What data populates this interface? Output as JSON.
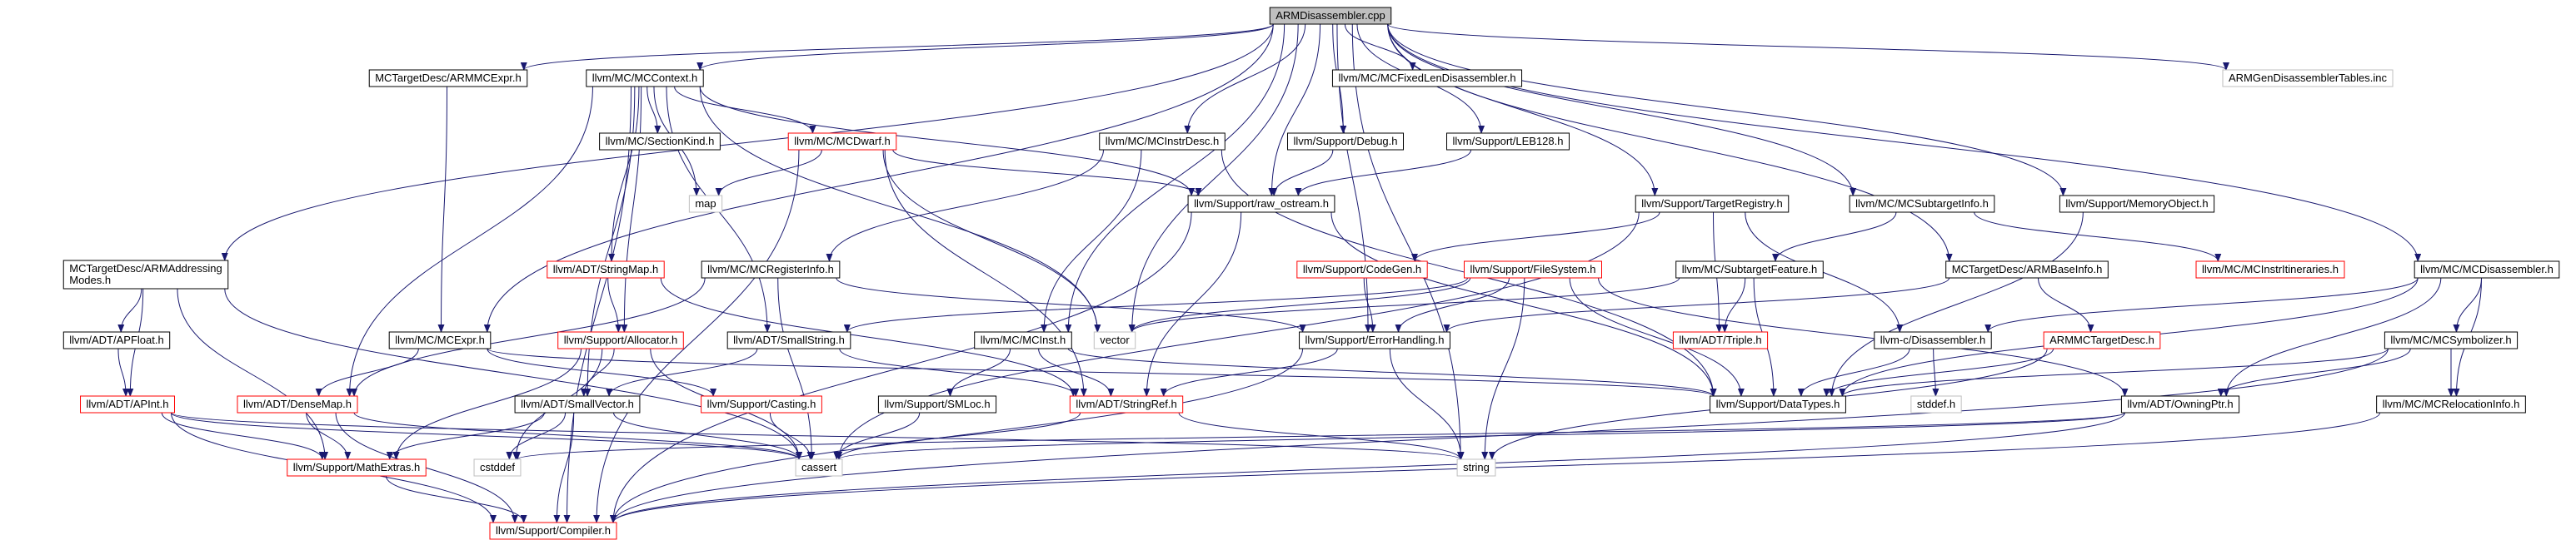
{
  "colors": {
    "edge": "#191970",
    "border_default": "#000000",
    "border_red": "#ff0000",
    "border_gray": "#bfbfbf",
    "root_fill": "#bfbfbf"
  },
  "nodes": [
    {
      "id": "armdis",
      "label": "ARMDisassembler.cpp",
      "border": "black",
      "fill": "gray"
    },
    {
      "id": "armmcexpr_h",
      "label": "MCTargetDesc/ARMMCExpr.h",
      "border": "black"
    },
    {
      "id": "mccontext",
      "label": "llvm/MC/MCContext.h",
      "border": "black"
    },
    {
      "id": "fixedlen",
      "label": "llvm/MC/MCFixedLenDisassembler.h",
      "border": "black"
    },
    {
      "id": "gentables",
      "label": "ARMGenDisassemblerTables.inc",
      "border": "gray"
    },
    {
      "id": "sectionkind",
      "label": "llvm/MC/SectionKind.h",
      "border": "black"
    },
    {
      "id": "mcdwarf",
      "label": "llvm/MC/MCDwarf.h",
      "border": "red"
    },
    {
      "id": "mcinstrdesc",
      "label": "llvm/MC/MCInstrDesc.h",
      "border": "black"
    },
    {
      "id": "debug",
      "label": "llvm/Support/Debug.h",
      "border": "black"
    },
    {
      "id": "leb128",
      "label": "llvm/Support/LEB128.h",
      "border": "black"
    },
    {
      "id": "map",
      "label": "map",
      "border": "gray"
    },
    {
      "id": "raw_ostream",
      "label": "llvm/Support/raw_ostream.h",
      "border": "black"
    },
    {
      "id": "targetregistry",
      "label": "llvm/Support/TargetRegistry.h",
      "border": "black"
    },
    {
      "id": "subtargetinfo",
      "label": "llvm/MC/MCSubtargetInfo.h",
      "border": "black"
    },
    {
      "id": "memobj",
      "label": "llvm/Support/MemoryObject.h",
      "border": "black"
    },
    {
      "id": "armaddr",
      "label": "MCTargetDesc/ARMAddressing\nModes.h",
      "border": "black"
    },
    {
      "id": "stringmap",
      "label": "llvm/ADT/StringMap.h",
      "border": "red"
    },
    {
      "id": "mcreginfo",
      "label": "llvm/MC/MCRegisterInfo.h",
      "border": "black"
    },
    {
      "id": "codegen",
      "label": "llvm/Support/CodeGen.h",
      "border": "red"
    },
    {
      "id": "filesystem",
      "label": "llvm/Support/FileSystem.h",
      "border": "red"
    },
    {
      "id": "subtargetfeature",
      "label": "llvm/MC/SubtargetFeature.h",
      "border": "black"
    },
    {
      "id": "armbaseinfo",
      "label": "MCTargetDesc/ARMBaseInfo.h",
      "border": "black"
    },
    {
      "id": "instritins",
      "label": "llvm/MC/MCInstrItineraries.h",
      "border": "red"
    },
    {
      "id": "mcdisasm",
      "label": "llvm/MC/MCDisassembler.h",
      "border": "black"
    },
    {
      "id": "apfloat",
      "label": "llvm/ADT/APFloat.h",
      "border": "black"
    },
    {
      "id": "mcexpr",
      "label": "llvm/MC/MCExpr.h",
      "border": "black"
    },
    {
      "id": "allocator",
      "label": "llvm/Support/Allocator.h",
      "border": "red"
    },
    {
      "id": "smallstring",
      "label": "llvm/ADT/SmallString.h",
      "border": "black"
    },
    {
      "id": "mcinst",
      "label": "llvm/MC/MCInst.h",
      "border": "black"
    },
    {
      "id": "vector",
      "label": "vector",
      "border": "gray"
    },
    {
      "id": "errorhandling",
      "label": "llvm/Support/ErrorHandling.h",
      "border": "black"
    },
    {
      "id": "triple",
      "label": "llvm/ADT/Triple.h",
      "border": "red"
    },
    {
      "id": "cdisasm",
      "label": "llvm-c/Disassembler.h",
      "border": "black"
    },
    {
      "id": "armmctargetdesc",
      "label": "ARMMCTargetDesc.h",
      "border": "red"
    },
    {
      "id": "mcsymbolizer",
      "label": "llvm/MC/MCSymbolizer.h",
      "border": "black"
    },
    {
      "id": "apint",
      "label": "llvm/ADT/APInt.h",
      "border": "red"
    },
    {
      "id": "densemap",
      "label": "llvm/ADT/DenseMap.h",
      "border": "red"
    },
    {
      "id": "smallvector",
      "label": "llvm/ADT/SmallVector.h",
      "border": "black"
    },
    {
      "id": "casting",
      "label": "llvm/Support/Casting.h",
      "border": "red"
    },
    {
      "id": "smloc",
      "label": "llvm/Support/SMLoc.h",
      "border": "black"
    },
    {
      "id": "stringref",
      "label": "llvm/ADT/StringRef.h",
      "border": "red"
    },
    {
      "id": "datatypes",
      "label": "llvm/Support/DataTypes.h",
      "border": "black"
    },
    {
      "id": "stddef",
      "label": "stddef.h",
      "border": "gray"
    },
    {
      "id": "owningptr",
      "label": "llvm/ADT/OwningPtr.h",
      "border": "black"
    },
    {
      "id": "relocinfo",
      "label": "llvm/MC/MCRelocationInfo.h",
      "border": "black"
    },
    {
      "id": "cstddef",
      "label": "cstddef",
      "border": "gray"
    },
    {
      "id": "mathextras",
      "label": "llvm/Support/MathExtras.h",
      "border": "red"
    },
    {
      "id": "cassert",
      "label": "cassert",
      "border": "gray"
    },
    {
      "id": "string",
      "label": "string",
      "border": "gray"
    },
    {
      "id": "compiler",
      "label": "llvm/Support/Compiler.h",
      "border": "red"
    }
  ],
  "edges": [
    [
      "armdis",
      "armmcexpr_h"
    ],
    [
      "armdis",
      "mccontext"
    ],
    [
      "armdis",
      "fixedlen"
    ],
    [
      "armdis",
      "gentables"
    ],
    [
      "armdis",
      "debug"
    ],
    [
      "armdis",
      "leb128"
    ],
    [
      "armdis",
      "mcinstrdesc"
    ],
    [
      "armdis",
      "raw_ostream"
    ],
    [
      "armdis",
      "targetregistry"
    ],
    [
      "armdis",
      "subtargetinfo"
    ],
    [
      "armdis",
      "memobj"
    ],
    [
      "armdis",
      "armaddr"
    ],
    [
      "armdis",
      "armbaseinfo"
    ],
    [
      "armdis",
      "mcdisasm"
    ],
    [
      "armdis",
      "mcexpr"
    ],
    [
      "armdis",
      "mcinst"
    ],
    [
      "armdis",
      "vector"
    ],
    [
      "armdis",
      "errorhandling"
    ],
    [
      "armdis",
      "string"
    ],
    [
      "armmcexpr_h",
      "mcexpr"
    ],
    [
      "mccontext",
      "sectionkind"
    ],
    [
      "mccontext",
      "mcdwarf"
    ],
    [
      "mccontext",
      "map"
    ],
    [
      "mccontext",
      "stringmap"
    ],
    [
      "mccontext",
      "raw_ostream"
    ],
    [
      "mccontext",
      "allocator"
    ],
    [
      "mccontext",
      "smallstring"
    ],
    [
      "mccontext",
      "vector"
    ],
    [
      "mccontext",
      "densemap"
    ],
    [
      "mccontext",
      "smallvector"
    ],
    [
      "mccontext",
      "compiler"
    ],
    [
      "mcdwarf",
      "map"
    ],
    [
      "mcdwarf",
      "raw_ostream"
    ],
    [
      "mcdwarf",
      "stringref"
    ],
    [
      "mcdwarf",
      "vector"
    ],
    [
      "mcdwarf",
      "compiler"
    ],
    [
      "mcinstrdesc",
      "mcreginfo"
    ],
    [
      "mcinstrdesc",
      "mcinst"
    ],
    [
      "mcinstrdesc",
      "datatypes"
    ],
    [
      "debug",
      "raw_ostream"
    ],
    [
      "leb128",
      "raw_ostream"
    ],
    [
      "raw_ostream",
      "stringref"
    ],
    [
      "raw_ostream",
      "compiler"
    ],
    [
      "raw_ostream",
      "datatypes"
    ],
    [
      "targetregistry",
      "codegen"
    ],
    [
      "targetregistry",
      "triple"
    ],
    [
      "targetregistry",
      "cdisasm"
    ],
    [
      "targetregistry",
      "cassert"
    ],
    [
      "subtargetinfo",
      "subtargetfeature"
    ],
    [
      "subtargetinfo",
      "instritins"
    ],
    [
      "memobj",
      "datatypes"
    ],
    [
      "armaddr",
      "apfloat"
    ],
    [
      "armaddr",
      "apint"
    ],
    [
      "armaddr",
      "mathextras"
    ],
    [
      "armaddr",
      "cassert"
    ],
    [
      "stringmap",
      "allocator"
    ],
    [
      "stringmap",
      "stringref"
    ],
    [
      "mcreginfo",
      "errorhandling"
    ],
    [
      "mcreginfo",
      "densemap"
    ],
    [
      "mcreginfo",
      "cassert"
    ],
    [
      "codegen",
      "errorhandling"
    ],
    [
      "filesystem",
      "errorhandling"
    ],
    [
      "filesystem",
      "smallstring"
    ],
    [
      "filesystem",
      "owningptr"
    ],
    [
      "filesystem",
      "datatypes"
    ],
    [
      "filesystem",
      "string"
    ],
    [
      "filesystem",
      "vector"
    ],
    [
      "subtargetfeature",
      "triple"
    ],
    [
      "subtargetfeature",
      "vector"
    ],
    [
      "subtargetfeature",
      "datatypes"
    ],
    [
      "armbaseinfo",
      "armmctargetdesc"
    ],
    [
      "armbaseinfo",
      "errorhandling"
    ],
    [
      "mcdisasm",
      "mcsymbolizer"
    ],
    [
      "mcdisasm",
      "relocinfo"
    ],
    [
      "mcdisasm",
      "owningptr"
    ],
    [
      "mcdisasm",
      "cdisasm"
    ],
    [
      "mcdisasm",
      "datatypes"
    ],
    [
      "apfloat",
      "apint"
    ],
    [
      "mcexpr",
      "casting"
    ],
    [
      "mcexpr",
      "densemap"
    ],
    [
      "mcexpr",
      "datatypes"
    ],
    [
      "allocator",
      "smallvector"
    ],
    [
      "allocator",
      "mathextras"
    ],
    [
      "allocator",
      "cstddef"
    ],
    [
      "allocator",
      "cassert"
    ],
    [
      "smallstring",
      "smallvector"
    ],
    [
      "smallstring",
      "stringref"
    ],
    [
      "mcinst",
      "smloc"
    ],
    [
      "mcinst",
      "stringref"
    ],
    [
      "mcinst",
      "datatypes"
    ],
    [
      "errorhandling",
      "compiler"
    ],
    [
      "errorhandling",
      "string"
    ],
    [
      "errorhandling",
      "stringref"
    ],
    [
      "cdisasm",
      "datatypes"
    ],
    [
      "cdisasm",
      "stddef"
    ],
    [
      "armmctargetdesc",
      "datatypes"
    ],
    [
      "armmctargetdesc",
      "string"
    ],
    [
      "mcsymbolizer",
      "owningptr"
    ],
    [
      "mcsymbolizer",
      "relocinfo"
    ],
    [
      "mcsymbolizer",
      "compiler"
    ],
    [
      "mcsymbolizer",
      "datatypes"
    ],
    [
      "apint",
      "mathextras"
    ],
    [
      "apint",
      "cassert"
    ],
    [
      "apint",
      "string"
    ],
    [
      "apint",
      "compiler"
    ],
    [
      "densemap",
      "mathextras"
    ],
    [
      "densemap",
      "cassert"
    ],
    [
      "densemap",
      "compiler"
    ],
    [
      "smallvector",
      "mathextras"
    ],
    [
      "smallvector",
      "cstddef"
    ],
    [
      "smallvector",
      "cassert"
    ],
    [
      "smallvector",
      "compiler"
    ],
    [
      "casting",
      "cassert"
    ],
    [
      "smloc",
      "cassert"
    ],
    [
      "stringref",
      "string"
    ],
    [
      "stringref",
      "cassert"
    ],
    [
      "owningptr",
      "cstddef"
    ],
    [
      "owningptr",
      "cassert"
    ],
    [
      "owningptr",
      "compiler"
    ],
    [
      "relocinfo",
      "compiler"
    ],
    [
      "mathextras",
      "compiler"
    ]
  ]
}
